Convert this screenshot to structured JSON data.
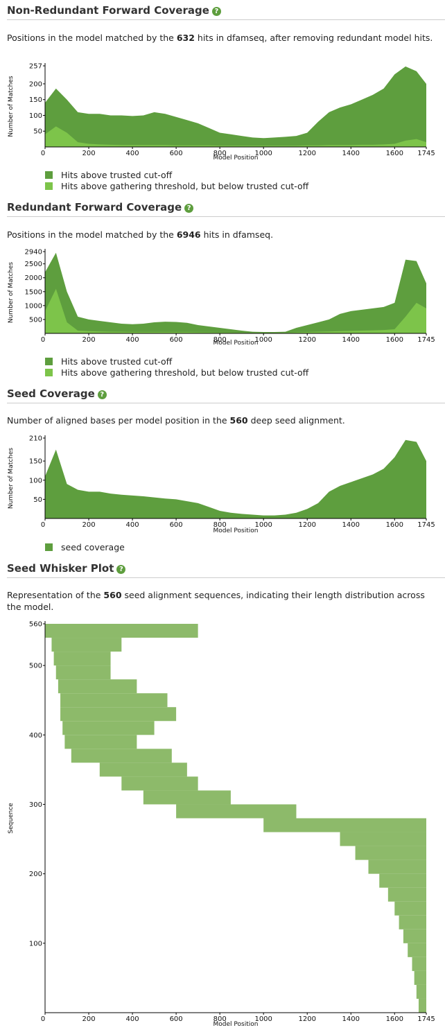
{
  "sections": [
    {
      "title": "Non-Redundant Forward Coverage",
      "description": {
        "before": "Positions in the model matched by the ",
        "count": 632,
        "after": " hits in dfamseq, after removing redundant model hits."
      },
      "chart_data": {
        "type": "area",
        "y_label": "Number of Matches",
        "x_label": "Model Position",
        "x": [
          0,
          50,
          100,
          150,
          200,
          250,
          300,
          350,
          400,
          450,
          500,
          550,
          600,
          650,
          700,
          750,
          800,
          850,
          900,
          950,
          1000,
          1050,
          1100,
          1150,
          1200,
          1250,
          1300,
          1350,
          1400,
          1450,
          1500,
          1550,
          1600,
          1650,
          1700,
          1745
        ],
        "series": [
          {
            "name": "Hits above trusted cut-off",
            "color": "#5e9e3e",
            "values": [
              140,
              185,
              150,
              110,
              105,
              105,
              100,
              100,
              98,
              100,
              110,
              105,
              95,
              85,
              75,
              60,
              45,
              40,
              35,
              30,
              28,
              30,
              32,
              35,
              45,
              80,
              110,
              125,
              135,
              150,
              165,
              185,
              230,
              255,
              240,
              200
            ]
          },
          {
            "name": "Hits above gathering threshold, but below trusted cut-off",
            "color": "#7dc44a",
            "values": [
              40,
              65,
              45,
              15,
              10,
              8,
              7,
              6,
              6,
              6,
              6,
              6,
              5,
              5,
              5,
              5,
              4,
              4,
              4,
              4,
              4,
              4,
              4,
              4,
              5,
              5,
              6,
              6,
              6,
              7,
              7,
              8,
              10,
              20,
              25,
              15
            ]
          }
        ],
        "xlim": [
          0,
          1745
        ],
        "xticks": [
          0,
          200,
          400,
          600,
          800,
          1000,
          1200,
          1400,
          1600,
          1745
        ],
        "ylim": [
          0,
          257
        ],
        "yticks": [
          50,
          100,
          150,
          200,
          257
        ]
      }
    },
    {
      "title": "Redundant Forward Coverage",
      "description": {
        "before": "Positions in the model matched by the ",
        "count": 6946,
        "after": " hits in dfamseq."
      },
      "chart_data": {
        "type": "area",
        "y_label": "Number of Matches",
        "x_label": "Model Position",
        "x": [
          0,
          50,
          100,
          150,
          200,
          250,
          300,
          350,
          400,
          450,
          500,
          550,
          600,
          650,
          700,
          750,
          800,
          850,
          900,
          950,
          1000,
          1050,
          1100,
          1150,
          1200,
          1250,
          1300,
          1350,
          1400,
          1450,
          1500,
          1550,
          1600,
          1650,
          1700,
          1745
        ],
        "series": [
          {
            "name": "Hits above trusted cut-off",
            "color": "#5e9e3e",
            "values": [
              2200,
              2900,
              1500,
              600,
              500,
              450,
              400,
              350,
              330,
              350,
              400,
              420,
              410,
              380,
              300,
              250,
              200,
              150,
              100,
              60,
              50,
              50,
              60,
              200,
              300,
              400,
              500,
              700,
              800,
              850,
              900,
              950,
              1100,
              2650,
              2600,
              1800
            ]
          },
          {
            "name": "Hits above gathering threshold, but below trusted cut-off",
            "color": "#7dc44a",
            "values": [
              800,
              1600,
              400,
              100,
              80,
              70,
              60,
              55,
              50,
              50,
              50,
              50,
              50,
              50,
              45,
              40,
              35,
              30,
              25,
              20,
              20,
              20,
              25,
              40,
              50,
              60,
              70,
              80,
              90,
              100,
              110,
              120,
              150,
              600,
              1100,
              900
            ]
          }
        ],
        "xlim": [
          0,
          1745
        ],
        "xticks": [
          0,
          200,
          400,
          600,
          800,
          1000,
          1200,
          1400,
          1600,
          1745
        ],
        "ylim": [
          0,
          2940
        ],
        "yticks": [
          500,
          1000,
          1500,
          2000,
          2500,
          2940
        ]
      }
    },
    {
      "title": "Seed Coverage",
      "description": {
        "before": "Number of aligned bases per model position in the ",
        "count": 560,
        "after": " deep seed alignment."
      },
      "chart_data": {
        "type": "area",
        "y_label": "Number of Matches",
        "x_label": "Model Position",
        "x": [
          0,
          50,
          100,
          150,
          200,
          250,
          300,
          350,
          400,
          450,
          500,
          550,
          600,
          650,
          700,
          750,
          800,
          850,
          900,
          950,
          1000,
          1050,
          1100,
          1150,
          1200,
          1250,
          1300,
          1350,
          1400,
          1450,
          1500,
          1550,
          1600,
          1650,
          1700,
          1745
        ],
        "series": [
          {
            "name": "seed coverage",
            "color": "#5e9e3e",
            "values": [
              110,
              180,
              90,
              75,
              70,
              70,
              65,
              62,
              60,
              58,
              55,
              52,
              50,
              45,
              40,
              30,
              20,
              15,
              12,
              10,
              8,
              8,
              10,
              15,
              25,
              40,
              70,
              85,
              95,
              105,
              115,
              130,
              160,
              205,
              200,
              150
            ]
          }
        ],
        "xlim": [
          0,
          1745
        ],
        "xticks": [
          0,
          200,
          400,
          600,
          800,
          1000,
          1200,
          1400,
          1600,
          1745
        ],
        "ylim": [
          0,
          210
        ],
        "yticks": [
          50,
          100,
          150,
          210
        ]
      }
    },
    {
      "title": "Seed Whisker Plot",
      "description": {
        "before": "Representation of the ",
        "count": 560,
        "after": " seed alignment sequences, indicating their length distribution across the model."
      },
      "chart_data": {
        "type": "whisker",
        "y_label": "Sequence",
        "x_label": "Model Position",
        "color": "#8dba6a",
        "sequences": [
          560,
          540,
          520,
          500,
          480,
          460,
          440,
          420,
          400,
          380,
          360,
          340,
          320,
          300,
          280,
          260,
          240,
          220,
          200,
          180,
          160,
          140,
          120,
          100,
          80,
          60,
          40,
          20
        ],
        "start": [
          0,
          30,
          40,
          50,
          60,
          70,
          70,
          80,
          90,
          120,
          250,
          350,
          450,
          600,
          1000,
          1350,
          1420,
          1480,
          1530,
          1570,
          1600,
          1620,
          1640,
          1660,
          1680,
          1690,
          1700,
          1710
        ],
        "end": [
          700,
          350,
          300,
          300,
          420,
          560,
          600,
          500,
          420,
          580,
          650,
          700,
          850,
          1150,
          1745,
          1745,
          1745,
          1745,
          1745,
          1745,
          1745,
          1745,
          1745,
          1745,
          1745,
          1745,
          1745,
          1745
        ],
        "xlim": [
          0,
          1745
        ],
        "xticks": [
          0,
          200,
          400,
          600,
          800,
          1000,
          1200,
          1400,
          1600,
          1745
        ],
        "ylim": [
          0,
          560
        ],
        "yticks": [
          100,
          200,
          300,
          400,
          500,
          560
        ]
      }
    }
  ]
}
